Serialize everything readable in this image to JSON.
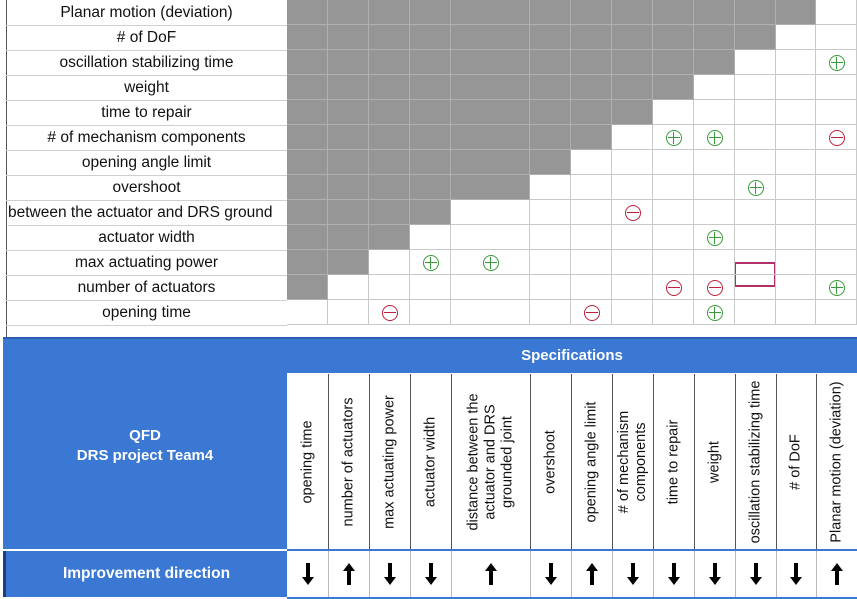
{
  "qfd": {
    "title_line1": "QFD",
    "title_line2": "DRS project Team4",
    "specifications_label": "Specifications",
    "improvement_label": "Improvement direction"
  },
  "rows": [
    {
      "label": "Planar motion (deviation)"
    },
    {
      "label": "# of DoF"
    },
    {
      "label": "oscillation stabilizing time"
    },
    {
      "label": "weight"
    },
    {
      "label": "time to repair"
    },
    {
      "label": "# of mechanism components"
    },
    {
      "label": "opening angle limit"
    },
    {
      "label": "overshoot"
    },
    {
      "label": "between the actuator and DRS ground"
    },
    {
      "label": "actuator width"
    },
    {
      "label": "max actuating power"
    },
    {
      "label": "number of actuators"
    },
    {
      "label": "opening time"
    }
  ],
  "columns": [
    {
      "label": "opening time",
      "direction": "down"
    },
    {
      "label": "number of actuators",
      "direction": "up"
    },
    {
      "label": "max actuating power",
      "direction": "down"
    },
    {
      "label": "actuator width",
      "direction": "down"
    },
    {
      "label": "distance between the actuator and DRS grounded joint",
      "direction": "up"
    },
    {
      "label": "overshoot",
      "direction": "down"
    },
    {
      "label": "opening angle limit",
      "direction": "up"
    },
    {
      "label": "# of mechanism components",
      "direction": "down"
    },
    {
      "label": "time to repair",
      "direction": "down"
    },
    {
      "label": "weight",
      "direction": "down"
    },
    {
      "label": "oscillation stabilizing time",
      "direction": "down"
    },
    {
      "label": "# of DoF",
      "direction": "down"
    },
    {
      "label": "Planar motion (deviation)",
      "direction": "up"
    }
  ],
  "correlations": [
    {
      "row": 2,
      "col": 12,
      "sign": "plus"
    },
    {
      "row": 5,
      "col": 8,
      "sign": "plus"
    },
    {
      "row": 5,
      "col": 9,
      "sign": "plus"
    },
    {
      "row": 5,
      "col": 12,
      "sign": "minus"
    },
    {
      "row": 7,
      "col": 10,
      "sign": "plus"
    },
    {
      "row": 8,
      "col": 7,
      "sign": "minus"
    },
    {
      "row": 9,
      "col": 9,
      "sign": "plus"
    },
    {
      "row": 10,
      "col": 3,
      "sign": "plus"
    },
    {
      "row": 10,
      "col": 4,
      "sign": "plus"
    },
    {
      "row": 11,
      "col": 8,
      "sign": "minus"
    },
    {
      "row": 11,
      "col": 9,
      "sign": "minus"
    },
    {
      "row": 11,
      "col": 12,
      "sign": "plus"
    },
    {
      "row": 12,
      "col": 2,
      "sign": "minus"
    },
    {
      "row": 12,
      "col": 6,
      "sign": "minus"
    },
    {
      "row": 12,
      "col": 9,
      "sign": "plus"
    }
  ],
  "colors": {
    "header_blue": "#3a78d4",
    "grey_fill": "#969696",
    "plus_green": "#3a9a3a",
    "minus_red": "#c0203a",
    "selection_border": "#b0306a"
  }
}
